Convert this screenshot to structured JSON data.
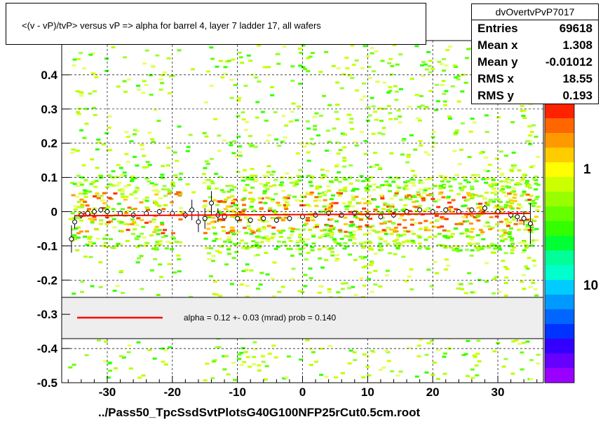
{
  "title": "<(v - vP)/tvP> versus   vP => alpha for barrel 4, layer 7 ladder 17, all wafers",
  "stats": {
    "name": "dvOvertvPvP7017",
    "rows": [
      {
        "key": "Entries",
        "value": "69618"
      },
      {
        "key": "Mean x",
        "value": "1.308"
      },
      {
        "key": "Mean y",
        "value": "-0.01012"
      },
      {
        "key": "RMS x",
        "value": "18.55"
      },
      {
        "key": "RMS y",
        "value": "0.193"
      }
    ]
  },
  "fit_label": "alpha =    0.12 +-  0.03 (mrad) prob = 0.140",
  "file_label": "../Pass50_TpcSsdSvtPlotsG40G100NFP25rCut0.5cm.root",
  "colors": {
    "fit_line": "#ff0000",
    "legend_band": "#eeeeee",
    "palette": [
      "#ff2200",
      "#ff6600",
      "#ff9900",
      "#ffcc00",
      "#ffff00",
      "#ccff00",
      "#99ff00",
      "#66ff00",
      "#33ff00",
      "#00ff33",
      "#00ff99",
      "#00ffcc",
      "#00ccff",
      "#0099ff",
      "#0066ff",
      "#0033ff",
      "#3300ff",
      "#6600ff",
      "#9900ff"
    ]
  },
  "chart_data": {
    "type": "heatmap",
    "title": "<(v - vP)/tvP> versus   vP => alpha for barrel 4, layer 7 ladder 17, all wafers",
    "xlabel": "",
    "ylabel": "",
    "xlim": [
      -37,
      37
    ],
    "ylim": [
      -0.5,
      0.5
    ],
    "x_ticks": [
      -30,
      -20,
      -10,
      0,
      10,
      20,
      30
    ],
    "y_ticks": [
      -0.5,
      -0.4,
      -0.3,
      -0.2,
      -0.1,
      0,
      0.1,
      0.2,
      0.3,
      0.4
    ],
    "z_scale": "log",
    "z_tick_labels": [
      "1",
      "10"
    ],
    "grid": true,
    "profile_points": [
      {
        "x": -35.5,
        "y": -0.08,
        "err": 0.04
      },
      {
        "x": -35,
        "y": -0.03,
        "err": 0.02
      },
      {
        "x": -34,
        "y": -0.01,
        "err": 0.01
      },
      {
        "x": -33,
        "y": -0.005,
        "err": 0.01
      },
      {
        "x": -32,
        "y": 0.0,
        "err": 0.01
      },
      {
        "x": -31,
        "y": 0.005,
        "err": 0.008
      },
      {
        "x": -30,
        "y": 0.0,
        "err": 0.008
      },
      {
        "x": -28,
        "y": -0.005,
        "err": 0.008
      },
      {
        "x": -26,
        "y": -0.01,
        "err": 0.008
      },
      {
        "x": -24,
        "y": -0.005,
        "err": 0.008
      },
      {
        "x": -22,
        "y": 0.0,
        "err": 0.008
      },
      {
        "x": -20,
        "y": -0.005,
        "err": 0.008
      },
      {
        "x": -18,
        "y": -0.01,
        "err": 0.01
      },
      {
        "x": -17,
        "y": 0.005,
        "err": 0.03
      },
      {
        "x": -16,
        "y": -0.03,
        "err": 0.03
      },
      {
        "x": -15,
        "y": -0.02,
        "err": 0.03
      },
      {
        "x": -14,
        "y": 0.025,
        "err": 0.035
      },
      {
        "x": -13,
        "y": -0.01,
        "err": 0.02
      },
      {
        "x": -12,
        "y": -0.015,
        "err": 0.008
      },
      {
        "x": -10,
        "y": -0.02,
        "err": 0.008
      },
      {
        "x": -8,
        "y": -0.025,
        "err": 0.008
      },
      {
        "x": -6,
        "y": -0.02,
        "err": 0.008
      },
      {
        "x": -4,
        "y": -0.025,
        "err": 0.008
      },
      {
        "x": -2,
        "y": -0.02,
        "err": 0.008
      },
      {
        "x": 0,
        "y": -0.015,
        "err": 0.008
      },
      {
        "x": 2,
        "y": -0.01,
        "err": 0.008
      },
      {
        "x": 4,
        "y": -0.005,
        "err": 0.008
      },
      {
        "x": 6,
        "y": -0.01,
        "err": 0.008
      },
      {
        "x": 8,
        "y": -0.005,
        "err": 0.008
      },
      {
        "x": 10,
        "y": -0.01,
        "err": 0.008
      },
      {
        "x": 12,
        "y": -0.015,
        "err": 0.008
      },
      {
        "x": 14,
        "y": -0.01,
        "err": 0.008
      },
      {
        "x": 16,
        "y": 0.0,
        "err": 0.008
      },
      {
        "x": 18,
        "y": 0.005,
        "err": 0.008
      },
      {
        "x": 20,
        "y": 0.0,
        "err": 0.008
      },
      {
        "x": 22,
        "y": 0.005,
        "err": 0.008
      },
      {
        "x": 24,
        "y": 0.0,
        "err": 0.008
      },
      {
        "x": 26,
        "y": 0.005,
        "err": 0.008
      },
      {
        "x": 28,
        "y": 0.01,
        "err": 0.01
      },
      {
        "x": 30,
        "y": 0.0,
        "err": 0.01
      },
      {
        "x": 32,
        "y": -0.01,
        "err": 0.01
      },
      {
        "x": 33,
        "y": -0.015,
        "err": 0.015
      },
      {
        "x": 34,
        "y": -0.02,
        "err": 0.02
      },
      {
        "x": 35,
        "y": -0.035,
        "err": 0.06
      }
    ],
    "fit_line": {
      "x": [
        -35,
        35
      ],
      "y": [
        -0.012,
        -0.005
      ]
    },
    "fit_label": "alpha =    0.12 +-  0.03 (mrad) prob = 0.140"
  }
}
